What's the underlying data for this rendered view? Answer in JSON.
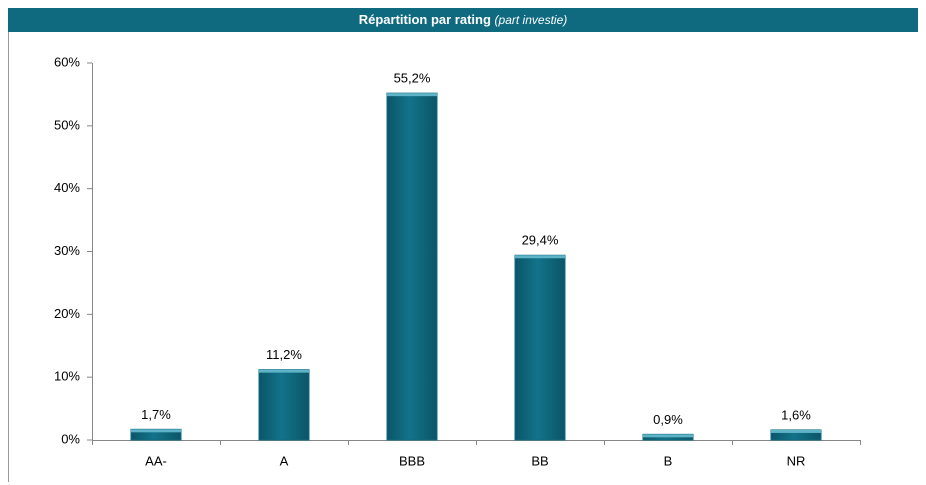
{
  "chart_data": {
    "type": "bar",
    "title": "Répartition par rating",
    "subtitle": "(part investie)",
    "categories": [
      "AA-",
      "A",
      "BBB",
      "BB",
      "B",
      "NR"
    ],
    "values": [
      1.7,
      11.2,
      55.2,
      29.4,
      0.9,
      1.6
    ],
    "value_labels": [
      "1,7%",
      "11,2%",
      "55,2%",
      "29,4%",
      "0,9%",
      "1,6%"
    ],
    "color": "#0f6a80",
    "ylim": [
      0,
      60
    ],
    "yticks": [
      {
        "value": 0,
        "label": "0%"
      },
      {
        "value": 10,
        "label": "10%"
      },
      {
        "value": 20,
        "label": "20%"
      },
      {
        "value": 30,
        "label": "30%"
      },
      {
        "value": 40,
        "label": "40%"
      },
      {
        "value": 50,
        "label": "50%"
      },
      {
        "value": 60,
        "label": "60%"
      }
    ],
    "grid": false
  }
}
